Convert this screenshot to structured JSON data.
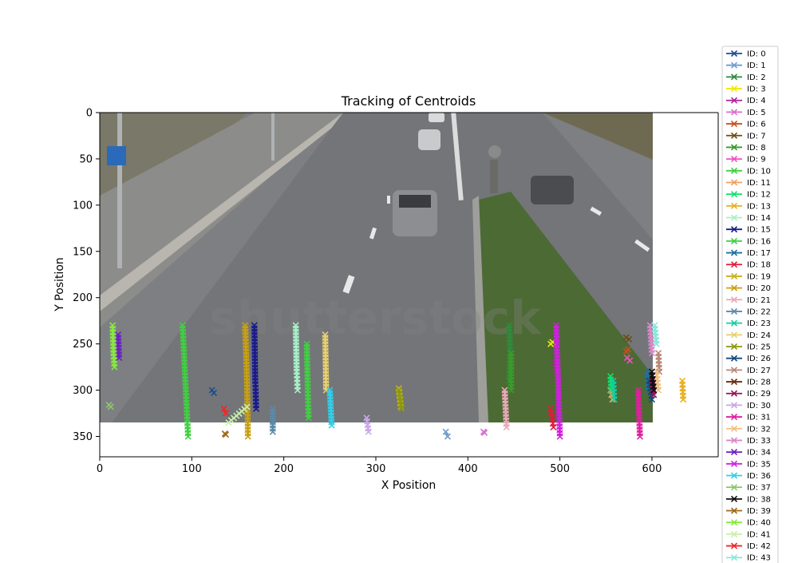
{
  "chart_data": {
    "type": "scatter",
    "title": "Tracking of Centroids",
    "xlabel": "X Position",
    "ylabel": "Y Position",
    "xlim": [
      0,
      672
    ],
    "ylim": [
      372,
      0
    ],
    "xticks": [
      0,
      100,
      200,
      300,
      400,
      500,
      600
    ],
    "yticks": [
      0,
      50,
      100,
      150,
      200,
      250,
      300,
      350
    ],
    "marker": "x",
    "background": "video frame of a road with cars",
    "watermark": "shutterstock",
    "legend_placement": "outside-right",
    "series": [
      {
        "name": "ID: 0",
        "color": "#1f4e8c",
        "points": [
          [
            122,
            300
          ],
          [
            124,
            303
          ]
        ]
      },
      {
        "name": "ID: 1",
        "color": "#6f9ccf",
        "points": [
          [
            378,
            350
          ],
          [
            376,
            345
          ]
        ]
      },
      {
        "name": "ID: 2",
        "color": "#2e8b3e",
        "points": [
          [
            445,
            230
          ],
          [
            446,
            260
          ],
          [
            445,
            290
          ]
        ]
      },
      {
        "name": "ID: 3",
        "color": "#f0e800",
        "points": [
          [
            490,
            250
          ],
          [
            492,
            248
          ]
        ]
      },
      {
        "name": "ID: 4",
        "color": "#b0209e",
        "points": [
          [
            495,
            270
          ],
          [
            497,
            280
          ]
        ]
      },
      {
        "name": "ID: 5",
        "color": "#d86fd0",
        "points": [
          [
            417,
            345
          ],
          [
            418,
            346
          ]
        ]
      },
      {
        "name": "ID: 6",
        "color": "#c8501e",
        "points": [
          [
            572,
            258
          ],
          [
            574,
            256
          ]
        ]
      },
      {
        "name": "ID: 7",
        "color": "#6b4e14",
        "points": [
          [
            572,
            243
          ],
          [
            575,
            245
          ]
        ]
      },
      {
        "name": "ID: 8",
        "color": "#3a9a2a",
        "points": [
          [
            447,
            260
          ],
          [
            447,
            300
          ]
        ]
      },
      {
        "name": "ID: 9",
        "color": "#f050c0",
        "points": [
          [
            573,
            265
          ],
          [
            576,
            268
          ]
        ]
      },
      {
        "name": "ID: 10",
        "color": "#40d040",
        "points": [
          [
            90,
            230
          ],
          [
            92,
            270
          ],
          [
            94,
            310
          ],
          [
            96,
            350
          ]
        ]
      },
      {
        "name": "ID: 11",
        "color": "#f2a060",
        "points": [
          [
            555,
            300
          ],
          [
            557,
            310
          ]
        ]
      },
      {
        "name": "ID: 12",
        "color": "#10e070",
        "points": [
          [
            555,
            285
          ],
          [
            556,
            300
          ]
        ]
      },
      {
        "name": "ID: 13",
        "color": "#e8b020",
        "points": [
          [
            633,
            290
          ],
          [
            634,
            310
          ]
        ]
      },
      {
        "name": "ID: 14",
        "color": "#a8f0c8",
        "points": [
          [
            213,
            230
          ],
          [
            214,
            280
          ],
          [
            215,
            300
          ]
        ]
      },
      {
        "name": "ID: 15",
        "color": "#1a1a8a",
        "points": [
          [
            168,
            230
          ],
          [
            169,
            290
          ],
          [
            170,
            320
          ]
        ]
      },
      {
        "name": "ID: 16",
        "color": "#40d040",
        "points": [
          [
            225,
            250
          ],
          [
            226,
            300
          ],
          [
            227,
            330
          ]
        ]
      },
      {
        "name": "ID: 17",
        "color": "#2070a0",
        "points": [
          [
            595,
            280
          ],
          [
            596,
            300
          ]
        ]
      },
      {
        "name": "ID: 18",
        "color": "#e01c3c",
        "points": [
          [
            490,
            320
          ],
          [
            493,
            340
          ]
        ]
      },
      {
        "name": "ID: 19",
        "color": "#c8b020",
        "points": [
          [
            325,
            298
          ],
          [
            327,
            318
          ]
        ]
      },
      {
        "name": "ID: 20",
        "color": "#c8a010",
        "points": [
          [
            158,
            230
          ],
          [
            160,
            290
          ],
          [
            161,
            350
          ]
        ]
      },
      {
        "name": "ID: 21",
        "color": "#e8a8b8",
        "points": [
          [
            440,
            300
          ],
          [
            442,
            340
          ]
        ]
      },
      {
        "name": "ID: 22",
        "color": "#5a8aa8",
        "points": [
          [
            188,
            320
          ],
          [
            188,
            345
          ]
        ]
      },
      {
        "name": "ID: 23",
        "color": "#10d0a0",
        "points": [
          [
            558,
            290
          ],
          [
            559,
            310
          ]
        ]
      },
      {
        "name": "ID: 24",
        "color": "#e8d070",
        "points": [
          [
            245,
            240
          ],
          [
            246,
            300
          ]
        ]
      },
      {
        "name": "ID: 25",
        "color": "#8a9a10",
        "points": [
          [
            325,
            300
          ],
          [
            328,
            320
          ]
        ]
      },
      {
        "name": "ID: 26",
        "color": "#104a7a",
        "points": [
          [
            597,
            290
          ],
          [
            600,
            310
          ]
        ]
      },
      {
        "name": "ID: 27",
        "color": "#b88878",
        "points": [
          [
            607,
            260
          ],
          [
            608,
            280
          ]
        ]
      },
      {
        "name": "ID: 28",
        "color": "#6a2a0a",
        "points": [
          [
            600,
            285
          ],
          [
            602,
            300
          ]
        ]
      },
      {
        "name": "ID: 29",
        "color": "#9a105a",
        "points": [
          [
            600,
            290
          ],
          [
            602,
            305
          ]
        ]
      },
      {
        "name": "ID: 30",
        "color": "#c8a8e8",
        "points": [
          [
            290,
            330
          ],
          [
            292,
            345
          ]
        ]
      },
      {
        "name": "ID: 31",
        "color": "#e020a0",
        "points": [
          [
            585,
            300
          ],
          [
            587,
            350
          ]
        ]
      },
      {
        "name": "ID: 32",
        "color": "#f0c080",
        "points": [
          [
            605,
            280
          ],
          [
            607,
            300
          ]
        ]
      },
      {
        "name": "ID: 33",
        "color": "#d888c8",
        "points": [
          [
            598,
            230
          ],
          [
            600,
            260
          ]
        ]
      },
      {
        "name": "ID: 34",
        "color": "#6a20c0",
        "points": [
          [
            20,
            240
          ],
          [
            21,
            265
          ]
        ]
      },
      {
        "name": "ID: 35",
        "color": "#d020e0",
        "points": [
          [
            496,
            230
          ],
          [
            498,
            290
          ],
          [
            500,
            350
          ]
        ]
      },
      {
        "name": "ID: 36",
        "color": "#30d0e8",
        "points": [
          [
            250,
            300
          ],
          [
            252,
            338
          ]
        ]
      },
      {
        "name": "ID: 37",
        "color": "#88c868",
        "points": [
          [
            10,
            316
          ],
          [
            12,
            318
          ]
        ]
      },
      {
        "name": "ID: 38",
        "color": "#101010",
        "points": [
          [
            600,
            280
          ],
          [
            602,
            300
          ]
        ]
      },
      {
        "name": "ID: 39",
        "color": "#9a6a14",
        "points": [
          [
            136,
            347
          ],
          [
            137,
            348
          ]
        ]
      },
      {
        "name": "ID: 40",
        "color": "#88e840",
        "points": [
          [
            14,
            230
          ],
          [
            15,
            260
          ],
          [
            16,
            275
          ]
        ]
      },
      {
        "name": "ID: 41",
        "color": "#c8f0a8",
        "points": [
          [
            140,
            335
          ],
          [
            160,
            318
          ]
        ]
      },
      {
        "name": "ID: 42",
        "color": "#f02828",
        "points": [
          [
            135,
            320
          ],
          [
            137,
            325
          ]
        ]
      },
      {
        "name": "ID: 43",
        "color": "#88e8d8",
        "points": [
          [
            603,
            230
          ],
          [
            605,
            250
          ]
        ]
      }
    ]
  }
}
